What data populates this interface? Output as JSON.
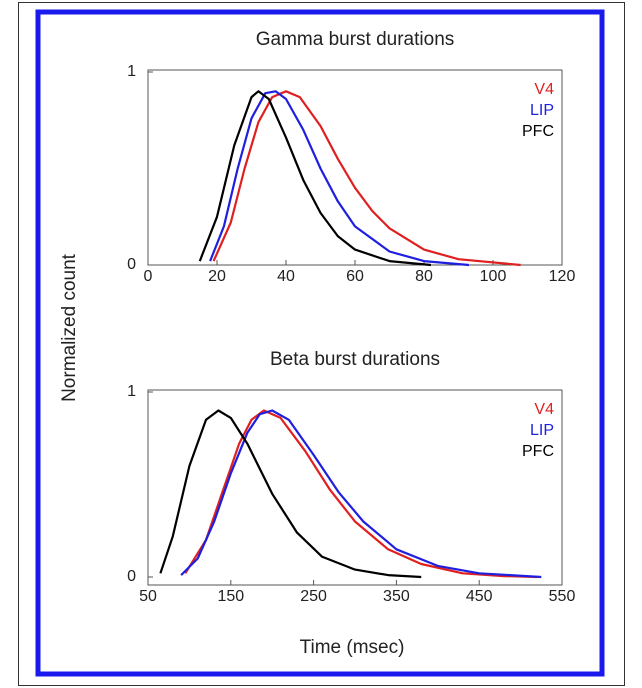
{
  "chart_data": [
    {
      "type": "line",
      "title": "Gamma burst durations",
      "ylabel": "Normalized count",
      "xlim": [
        0,
        120
      ],
      "xticks": [
        0,
        20,
        40,
        60,
        80,
        100,
        120
      ],
      "ylim": [
        0,
        1
      ],
      "yticks": [
        0,
        1
      ],
      "legend": "top-right",
      "series": [
        {
          "name": "V4",
          "color": "#e02020",
          "x": [
            19,
            24,
            28,
            32,
            36,
            40,
            44,
            50,
            55,
            60,
            65,
            70,
            80,
            90,
            108
          ],
          "values": [
            0.02,
            0.22,
            0.5,
            0.74,
            0.87,
            0.9,
            0.87,
            0.72,
            0.55,
            0.4,
            0.28,
            0.19,
            0.08,
            0.03,
            0
          ]
        },
        {
          "name": "LIP",
          "color": "#1f1fe0",
          "x": [
            18,
            22,
            26,
            30,
            34,
            37,
            40,
            45,
            50,
            55,
            60,
            70,
            80,
            93
          ],
          "values": [
            0.02,
            0.2,
            0.5,
            0.76,
            0.89,
            0.9,
            0.86,
            0.7,
            0.5,
            0.33,
            0.2,
            0.07,
            0.02,
            0
          ]
        },
        {
          "name": "PFC",
          "color": "#000000",
          "x": [
            15,
            20,
            25,
            30,
            32,
            35,
            40,
            45,
            50,
            55,
            60,
            70,
            82
          ],
          "values": [
            0.02,
            0.25,
            0.62,
            0.87,
            0.9,
            0.86,
            0.66,
            0.44,
            0.27,
            0.15,
            0.08,
            0.02,
            0
          ]
        }
      ]
    },
    {
      "type": "line",
      "title": "Beta burst durations",
      "xlabel": "Time (msec)",
      "xlim": [
        50,
        550
      ],
      "xticks": [
        50,
        150,
        250,
        350,
        450,
        550
      ],
      "ylim": [
        0,
        1
      ],
      "yticks": [
        0,
        1
      ],
      "legend": "top-right",
      "series": [
        {
          "name": "V4",
          "color": "#e02020",
          "x": [
            95,
            120,
            140,
            160,
            175,
            190,
            210,
            240,
            270,
            300,
            340,
            380,
            430,
            480,
            520
          ],
          "values": [
            0.02,
            0.2,
            0.46,
            0.72,
            0.85,
            0.9,
            0.86,
            0.68,
            0.47,
            0.3,
            0.15,
            0.07,
            0.02,
            0.005,
            0
          ]
        },
        {
          "name": "LIP",
          "color": "#1f1fe0",
          "x": [
            90,
            110,
            130,
            150,
            170,
            185,
            200,
            220,
            250,
            280,
            310,
            350,
            400,
            450,
            525
          ],
          "values": [
            0.01,
            0.1,
            0.3,
            0.56,
            0.78,
            0.88,
            0.9,
            0.85,
            0.66,
            0.46,
            0.3,
            0.15,
            0.06,
            0.02,
            0
          ]
        },
        {
          "name": "PFC",
          "color": "#000000",
          "x": [
            65,
            80,
            100,
            120,
            135,
            150,
            170,
            200,
            230,
            260,
            300,
            340,
            380
          ],
          "values": [
            0.02,
            0.22,
            0.6,
            0.85,
            0.9,
            0.86,
            0.72,
            0.45,
            0.24,
            0.11,
            0.04,
            0.01,
            0
          ]
        }
      ]
    }
  ]
}
